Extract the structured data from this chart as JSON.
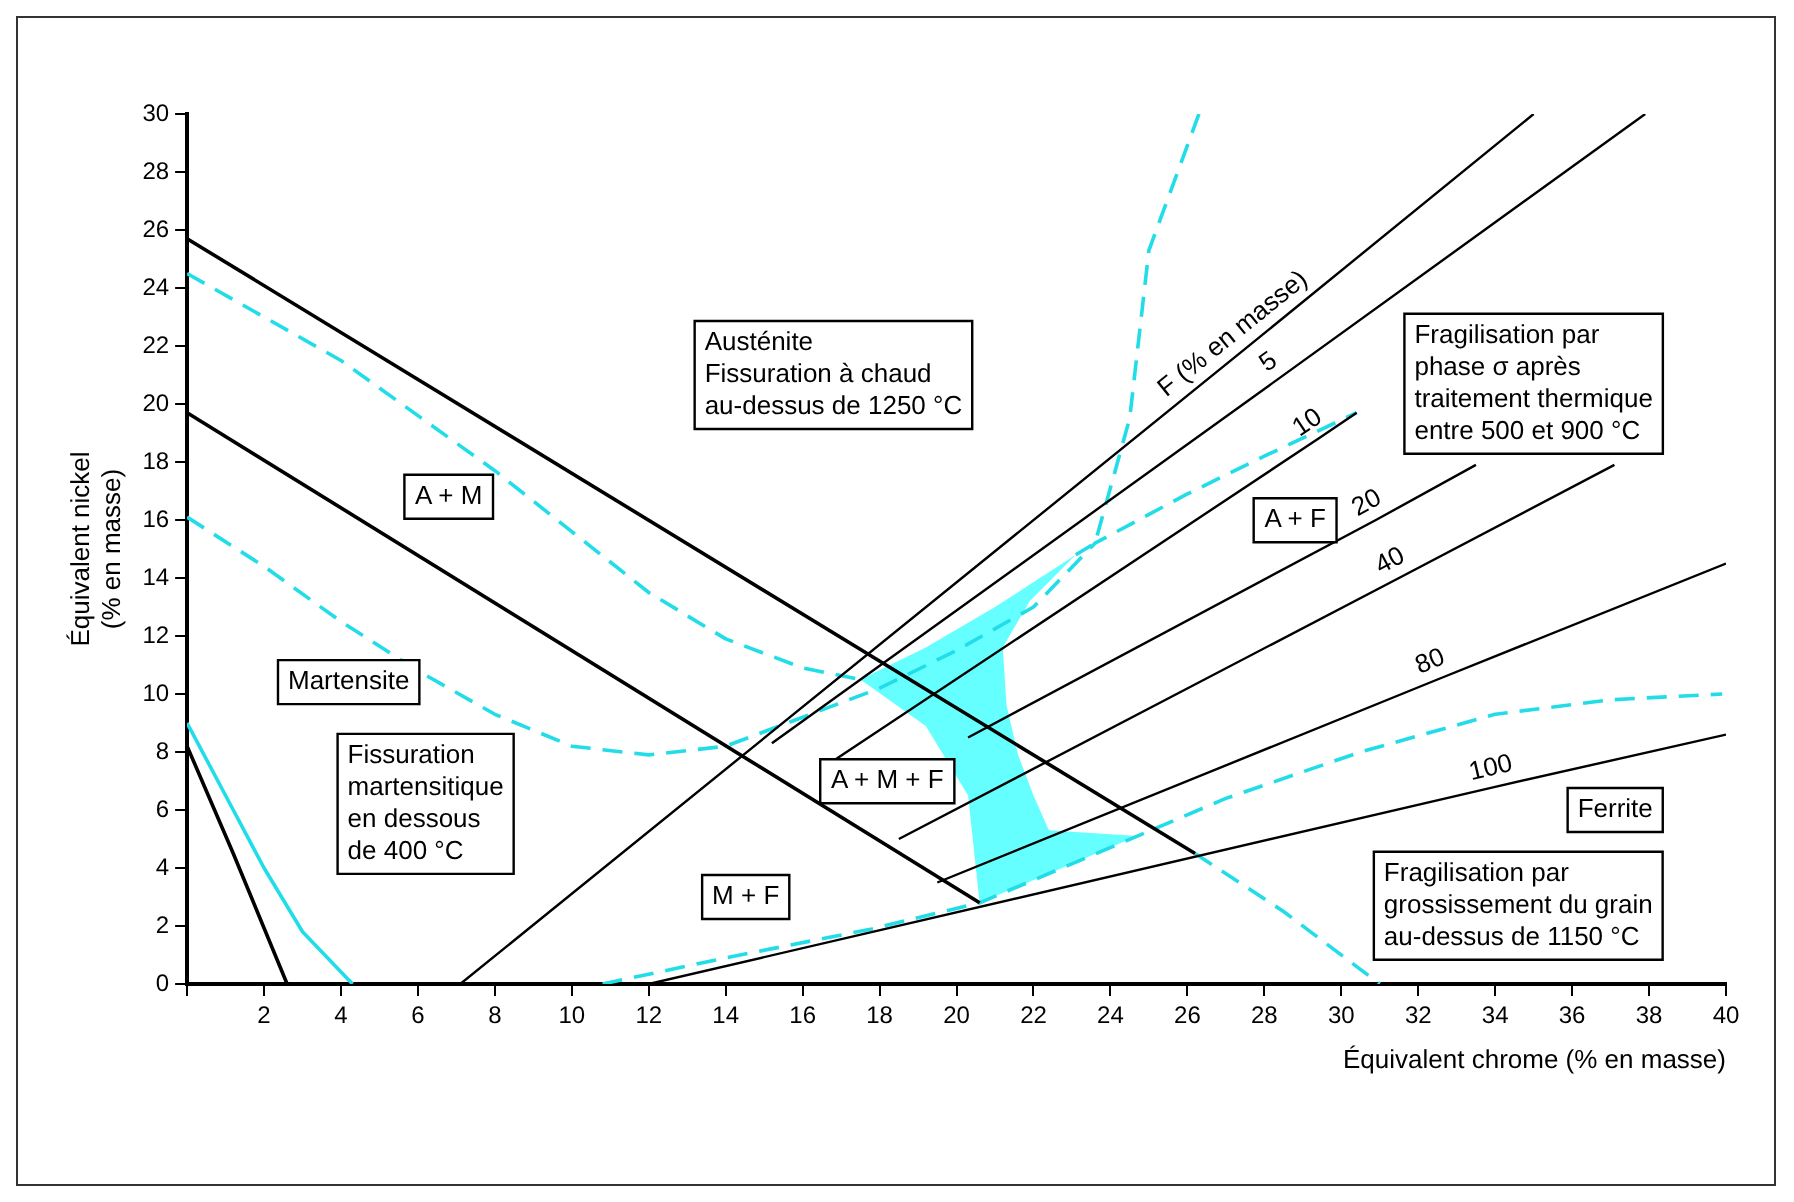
{
  "chart_data": {
    "type": "line",
    "xlabel": "Équivalent chrome (% en masse)",
    "ylabel": "Équivalent nickel\n(% en masse)",
    "xlim": [
      0,
      40
    ],
    "xticks": [
      {
        "value": 0,
        "label": null
      },
      2,
      4,
      6,
      8,
      10,
      12,
      14,
      16,
      18,
      20,
      22,
      24,
      26,
      28,
      30,
      32,
      34,
      36,
      38,
      40
    ],
    "ylim": [
      0,
      30
    ],
    "yticks": [
      0,
      2,
      4,
      6,
      8,
      10,
      12,
      14,
      16,
      18,
      20,
      22,
      24,
      26,
      28,
      30
    ],
    "grid": false,
    "legend": false,
    "marker": "none",
    "series": [
      {
        "type": "area",
        "color": "#66ffff",
        "x": [
          23.1,
          21.0,
          19.2,
          17.5,
          19.2,
          20.3,
          20.6,
          24.7,
          22.4,
          22.0,
          21.6,
          21.3,
          21.2,
          21.9,
          23.1
        ],
        "values": [
          14.8,
          13.0,
          11.6,
          10.5,
          8.9,
          6.5,
          2.8,
          5.1,
          5.3,
          6.5,
          7.9,
          9.6,
          11.6,
          13.2,
          14.8
        ]
      },
      {
        "color": "#000000",
        "line_style": "solid",
        "x": [
          0,
          26.2
        ],
        "values": [
          25.7,
          4.5
        ]
      },
      {
        "color": "#000000",
        "line_style": "solid",
        "x": [
          0,
          20.6
        ],
        "values": [
          19.7,
          2.8
        ]
      },
      {
        "color": "#000000",
        "line_style": "solid",
        "x": [
          0,
          1.2,
          2.6
        ],
        "values": [
          8.2,
          4.5,
          0
        ]
      },
      {
        "name": "F (% en masse)",
        "color": "#000000",
        "line_style": "solid",
        "x": [
          7.1,
          27.5,
          35.0
        ],
        "values": [
          0,
          21.9,
          30
        ]
      },
      {
        "name": "5",
        "color": "#000000",
        "line_style": "solid",
        "x": [
          15.2,
          28.4,
          37.9
        ],
        "values": [
          8.3,
          20.9,
          30
        ]
      },
      {
        "name": "10",
        "color": "#000000",
        "line_style": "solid",
        "x": [
          16.8,
          29.4,
          30.4
        ],
        "values": [
          7.7,
          18.8,
          19.7
        ]
      },
      {
        "name": "20",
        "color": "#000000",
        "line_style": "solid",
        "x": [
          20.3,
          30.9,
          33.5
        ],
        "values": [
          8.5,
          16.0,
          17.9
        ]
      },
      {
        "name": "40",
        "color": "#000000",
        "line_style": "solid",
        "x": [
          18.5,
          31.5,
          37.1
        ],
        "values": [
          5.0,
          14.0,
          17.9
        ]
      },
      {
        "name": "80",
        "color": "#000000",
        "line_style": "solid",
        "x": [
          19.5,
          32.5,
          40
        ],
        "values": [
          3.5,
          10.5,
          14.5
        ]
      },
      {
        "name": "100",
        "color": "#000000",
        "line_style": "solid",
        "x": [
          12.0,
          34.0,
          40
        ],
        "values": [
          0,
          6.8,
          8.6
        ]
      },
      {
        "color": "#22dde8",
        "line_style": "dashed",
        "x": [
          0,
          2,
          4,
          6,
          8,
          10,
          12,
          14,
          16,
          17.5
        ],
        "values": [
          24.5,
          23.0,
          21.5,
          19.6,
          17.7,
          15.6,
          13.5,
          11.9,
          10.9,
          10.5
        ]
      },
      {
        "color": "#22dde8",
        "line_style": "dashed",
        "x": [
          0,
          2,
          4,
          6,
          8,
          10,
          12,
          14,
          16,
          18,
          20,
          22,
          23.6,
          26,
          28,
          30.4
        ],
        "values": [
          16.1,
          14.4,
          12.5,
          10.8,
          9.3,
          8.2,
          7.9,
          8.2,
          9.2,
          10.2,
          11.5,
          13.0,
          15.2,
          16.9,
          18.2,
          19.7
        ]
      },
      {
        "color": "#22dde8",
        "line_style": "dashed",
        "x": [
          26.3,
          25.0,
          24.5,
          23.6,
          23.1
        ],
        "values": [
          30,
          25.3,
          19.5,
          15.2,
          14.8
        ]
      },
      {
        "color": "#22dde8",
        "line_style": "solid",
        "x": [
          0,
          1,
          2,
          3,
          4.3
        ],
        "values": [
          9.0,
          6.5,
          4.0,
          1.8,
          0
        ]
      },
      {
        "color": "#22dde8",
        "line_style": "dashed",
        "x": [
          10.8,
          14,
          17.8,
          20.6,
          24.7,
          27,
          30.5,
          34.0,
          37,
          39.9
        ],
        "values": [
          0,
          0.9,
          1.9,
          2.8,
          5.1,
          6.4,
          8.0,
          9.3,
          9.8,
          10.0
        ]
      },
      {
        "color": "#22dde8",
        "line_style": "dashed",
        "x": [
          26.2,
          28.5,
          31.0
        ],
        "values": [
          4.5,
          2.5,
          0
        ]
      }
    ],
    "annotations": [
      "Austénite\nFissuration à chaud\nau-dessus de 1250 °C",
      "A + M",
      "Martensite",
      "Fissuration\nmartensitique\nen dessous\nde 400 °C",
      "M + F",
      "A + M + F",
      "A + F",
      "Fragilisation par\nphase σ après\ntraitement thermique\nentre 500 et 900 °C",
      "Ferrite",
      "Fragilisation par\ngrossissement du grain\nau-dessus de 1150 °C"
    ]
  }
}
